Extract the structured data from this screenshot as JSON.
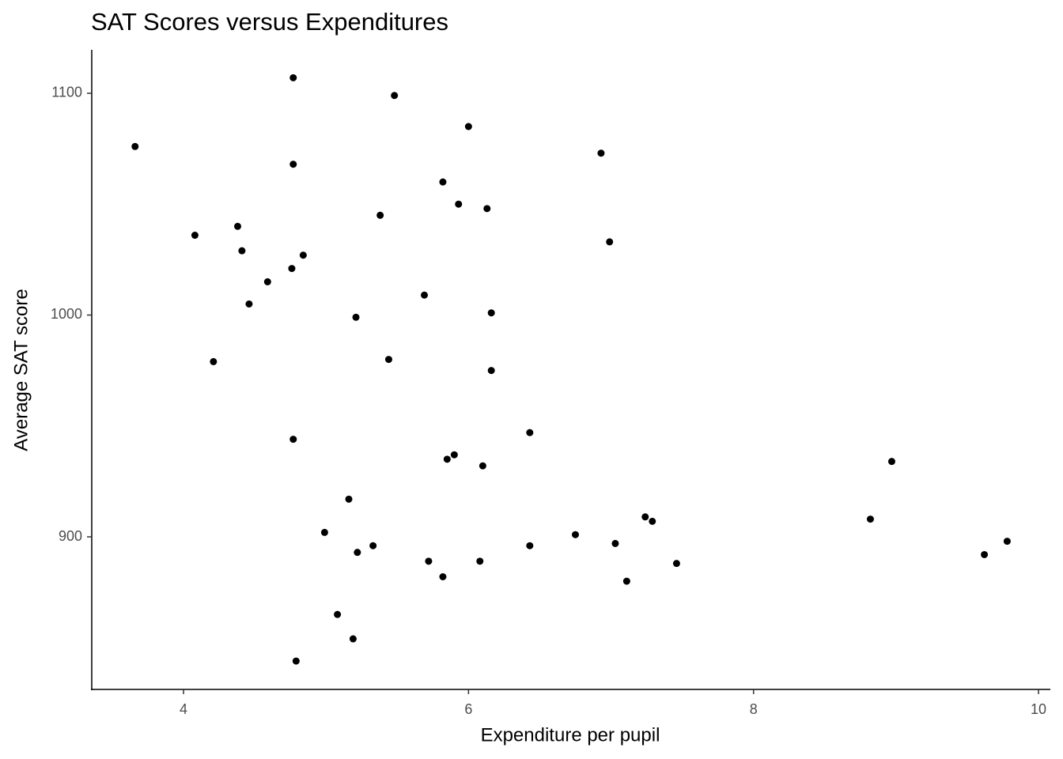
{
  "chart_data": {
    "type": "scatter",
    "title": "SAT Scores versus Expenditures",
    "x_label": "Expenditure per pupil",
    "y_label": "Average SAT score",
    "color": "#000000",
    "grid": false,
    "xlim": [
      3.356,
      10.083
    ],
    "ylim": [
      831.2,
      1119.6
    ],
    "xticks": [
      4,
      6,
      8,
      10
    ],
    "yticks": [
      900,
      1000,
      1100
    ],
    "x": [
      3.66,
      4.08,
      4.21,
      4.38,
      4.41,
      4.46,
      4.59,
      4.76,
      4.77,
      4.77,
      4.84,
      4.77,
      4.79,
      4.99,
      5.08,
      5.16,
      5.19,
      5.21,
      5.22,
      5.33,
      5.38,
      5.44,
      5.48,
      5.69,
      5.72,
      5.82,
      5.82,
      5.85,
      5.9,
      5.93,
      6.0,
      6.08,
      6.1,
      6.13,
      6.16,
      6.16,
      6.43,
      6.43,
      6.75,
      6.93,
      6.99,
      7.03,
      7.11,
      7.24,
      7.29,
      7.46,
      8.82,
      8.97,
      9.62,
      9.78
    ],
    "values": [
      1076,
      1036,
      979,
      1040,
      1029,
      1005,
      1015,
      1021,
      1107,
      1068,
      1027,
      944,
      844,
      902,
      865,
      917,
      854,
      999,
      893,
      896,
      1045,
      980,
      1099,
      1009,
      889,
      1060,
      882,
      935,
      937,
      1050,
      1085,
      889,
      932,
      1048,
      1001,
      975,
      947,
      896,
      901,
      1073,
      1033,
      897,
      880,
      909,
      907,
      888,
      908,
      934,
      892,
      898
    ]
  }
}
